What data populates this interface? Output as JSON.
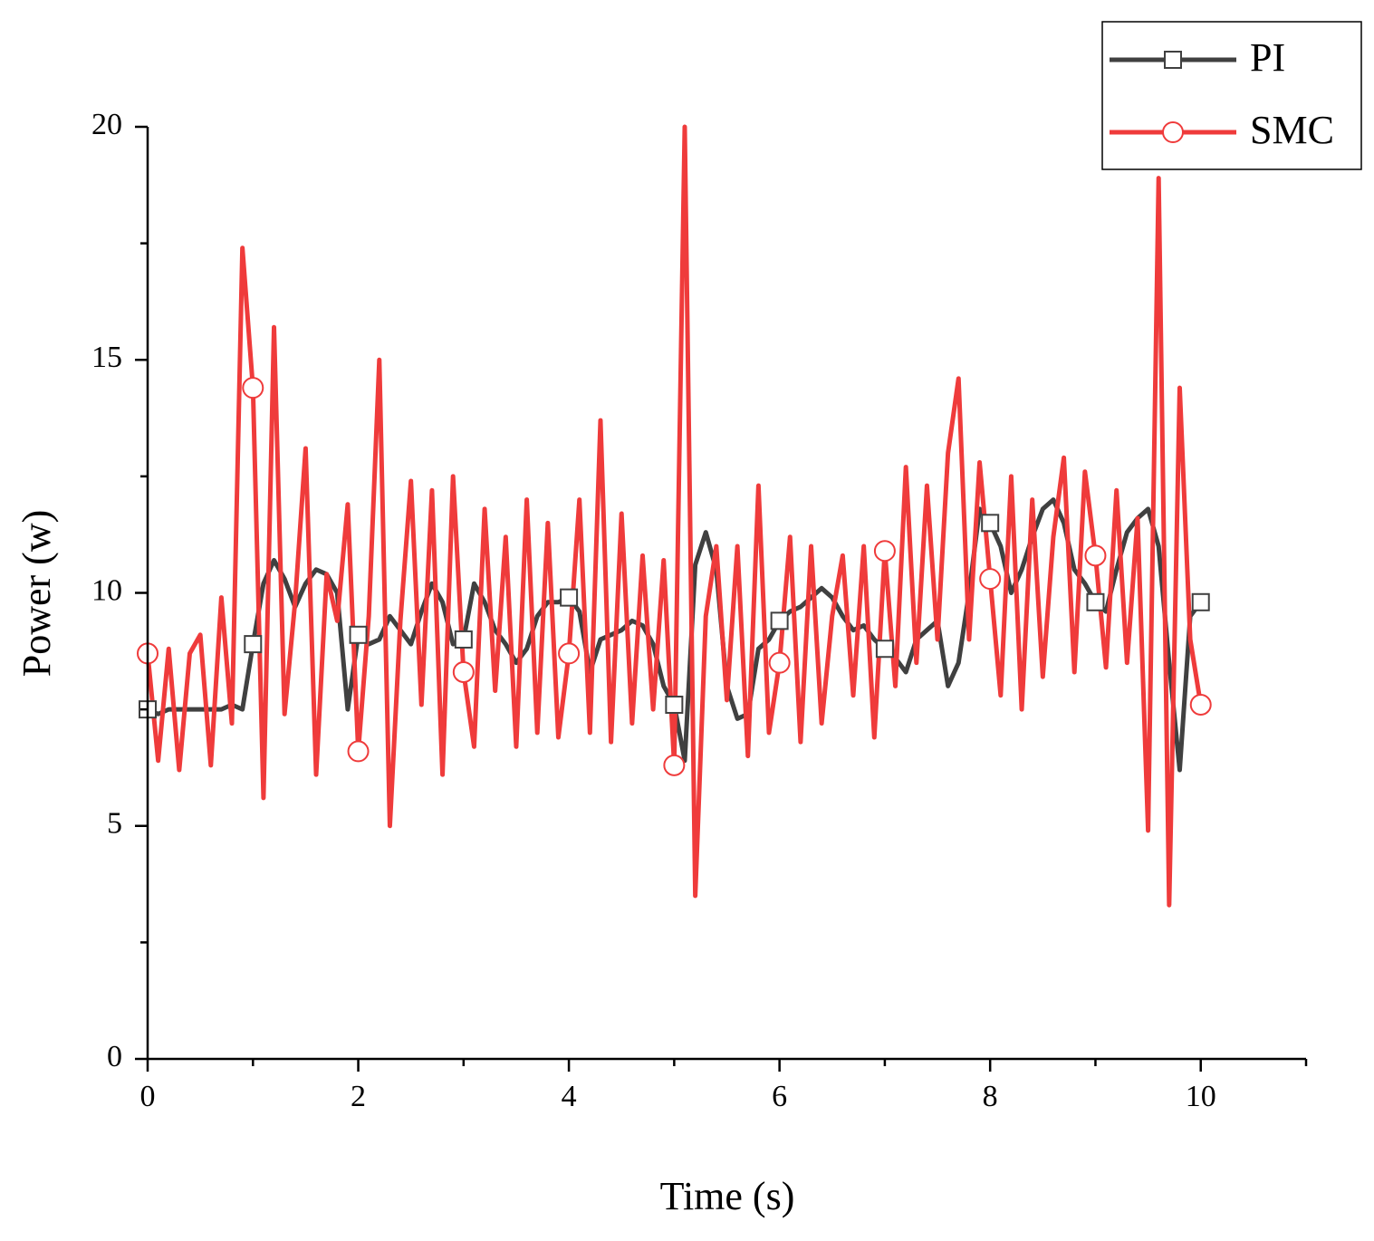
{
  "chart_data": {
    "type": "line",
    "xlabel": "Time (s)",
    "ylabel": "Power (w)",
    "xlim": [
      0,
      11
    ],
    "ylim": [
      0,
      20
    ],
    "xticks": [
      0,
      2,
      4,
      6,
      8,
      10
    ],
    "yticks": [
      0,
      5,
      10,
      15,
      20
    ],
    "xminor_ticks": [
      1,
      3,
      5,
      7,
      9,
      11
    ],
    "yminor_ticks": [
      2.5,
      7.5,
      12.5,
      17.5
    ],
    "legend": "upper right",
    "grid": false,
    "x": [
      0,
      0.1,
      0.2,
      0.3,
      0.4,
      0.5,
      0.6,
      0.7,
      0.8,
      0.9,
      1,
      1.1,
      1.2,
      1.3,
      1.4,
      1.5,
      1.6,
      1.7,
      1.8,
      1.9,
      2,
      2.1,
      2.2,
      2.3,
      2.4,
      2.5,
      2.6,
      2.7,
      2.8,
      2.9,
      3,
      3.1,
      3.2,
      3.3,
      3.4,
      3.5,
      3.6,
      3.7,
      3.8,
      3.9,
      4,
      4.1,
      4.2,
      4.3,
      4.4,
      4.5,
      4.6,
      4.7,
      4.8,
      4.9,
      5,
      5.1,
      5.2,
      5.3,
      5.4,
      5.5,
      5.6,
      5.7,
      5.8,
      5.9,
      6,
      6.1,
      6.2,
      6.3,
      6.4,
      6.5,
      6.6,
      6.7,
      6.8,
      6.9,
      7,
      7.1,
      7.2,
      7.3,
      7.4,
      7.5,
      7.6,
      7.7,
      7.8,
      7.9,
      8,
      8.1,
      8.2,
      8.3,
      8.4,
      8.5,
      8.6,
      8.7,
      8.8,
      8.9,
      9,
      9.1,
      9.2,
      9.3,
      9.4,
      9.5,
      9.6,
      9.7,
      9.8,
      9.9,
      10
    ],
    "series": [
      {
        "name": "PI",
        "color": "#404040",
        "marker": "square",
        "values": [
          7.5,
          7.4,
          7.5,
          7.5,
          7.5,
          7.5,
          7.5,
          7.5,
          7.6,
          7.5,
          8.9,
          10.2,
          10.7,
          10.3,
          9.7,
          10.2,
          10.5,
          10.4,
          10.0,
          7.5,
          9.1,
          8.9,
          9.0,
          9.5,
          9.2,
          8.9,
          9.6,
          10.2,
          9.8,
          8.9,
          9.0,
          10.2,
          9.8,
          9.2,
          8.9,
          8.5,
          8.8,
          9.5,
          9.8,
          9.8,
          9.9,
          9.6,
          8.3,
          9.0,
          9.1,
          9.2,
          9.4,
          9.3,
          8.9,
          8.0,
          7.6,
          6.4,
          10.6,
          11.3,
          10.5,
          8.0,
          7.3,
          7.4,
          8.8,
          9.0,
          9.4,
          9.6,
          9.7,
          9.9,
          10.1,
          9.9,
          9.5,
          9.2,
          9.3,
          9.0,
          8.8,
          8.6,
          8.3,
          9.0,
          9.2,
          9.4,
          8.0,
          8.5,
          10.0,
          11.8,
          11.5,
          11.0,
          10.0,
          10.5,
          11.2,
          11.8,
          12.0,
          11.5,
          10.5,
          10.2,
          9.8,
          9.6,
          10.5,
          11.3,
          11.6,
          11.8,
          11.0,
          8.5,
          6.2,
          9.5,
          9.8
        ]
      },
      {
        "name": "SMC",
        "color": "#ef3b3b",
        "marker": "circle",
        "values": [
          8.7,
          6.4,
          8.8,
          6.2,
          8.7,
          9.1,
          6.3,
          9.9,
          7.2,
          17.4,
          14.4,
          5.6,
          15.7,
          7.4,
          9.8,
          13.1,
          6.1,
          10.4,
          9.4,
          11.9,
          6.6,
          9.5,
          15.0,
          5.0,
          9.4,
          12.4,
          7.6,
          12.2,
          6.1,
          12.5,
          8.3,
          6.7,
          11.8,
          7.9,
          11.2,
          6.7,
          12.0,
          7.0,
          11.5,
          6.9,
          8.7,
          12.0,
          7.0,
          13.7,
          6.8,
          11.7,
          7.2,
          10.8,
          7.5,
          10.7,
          6.3,
          20.0,
          3.5,
          9.5,
          11.0,
          7.7,
          11.0,
          6.5,
          12.3,
          7.0,
          8.5,
          11.2,
          6.8,
          11.0,
          7.2,
          9.5,
          10.8,
          7.8,
          11.0,
          6.9,
          10.9,
          8.0,
          12.7,
          8.5,
          12.3,
          9.0,
          13.0,
          14.6,
          9.0,
          12.8,
          10.3,
          7.8,
          12.5,
          7.5,
          12.0,
          8.2,
          11.2,
          12.9,
          8.3,
          12.6,
          10.8,
          8.4,
          12.2,
          8.5,
          11.6,
          4.9,
          18.9,
          3.3,
          14.4,
          9.0,
          7.6
        ]
      }
    ]
  }
}
